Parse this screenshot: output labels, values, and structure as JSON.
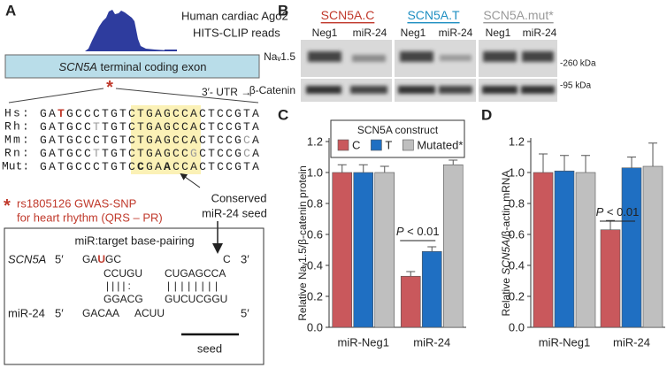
{
  "panel_a": {
    "label": "A",
    "reads": [
      "Human cardiac Ago2",
      "HITS-CLIP reads"
    ],
    "exon": {
      "italic": "SCN5A",
      "text": " terminal coding exon"
    },
    "snp_marker": "*",
    "utr": "3′- UTR →",
    "alignment": [
      {
        "species": "Hs:",
        "seq": [
          "GA",
          "T",
          "GCCCTGTCTGAGCCACTCCGTA"
        ]
      },
      {
        "species": "Rh:",
        "seq": [
          "GATGCC",
          "T",
          "TGTCTGAGCCACTCCGTA"
        ]
      },
      {
        "species": "Mm:",
        "seq": [
          "GATGCCCTGTCTGAGCCACTCCG",
          "C",
          "A"
        ]
      },
      {
        "species": "Rn:",
        "seq": [
          "GATGCC",
          "T",
          "TGTCTGAGCC",
          "G",
          "CTCCG",
          "C",
          "A"
        ]
      },
      {
        "species": "Mut:",
        "seq": [
          "GATGCCCTGTC",
          "C",
          "GA",
          "A",
          "CCACTCCGTA"
        ]
      }
    ],
    "snp_note": [
      "rs1805126 GWAS-SNP",
      "for heart rhythm (QRS – PR)"
    ],
    "seed_note": [
      "Conserved",
      "miR-24 seed"
    ],
    "pairing": {
      "title": "miR:target base-pairing",
      "target": {
        "name": "SCN5A",
        "end5": "5′",
        "seq": [
          "GA",
          "U",
          "GC"
        ],
        "tail": "C",
        "end3": "3′"
      },
      "paired_top": [
        "CCUGU",
        "CUGAGCCA"
      ],
      "bonds": [
        "||||:",
        "||||||||"
      ],
      "paired_bottom": [
        "GGACG",
        "GUCUCGGU"
      ],
      "mirna": {
        "name": "miR-24",
        "end5": "5′",
        "seq": [
          "GACAA",
          "ACUU"
        ],
        "end": "5′"
      },
      "seed": "seed"
    }
  },
  "panel_b": {
    "label": "B",
    "constructs": [
      "SCN5A.C",
      "SCN5A.T",
      "SCN5A.mut*"
    ],
    "lanes": [
      "Neg1",
      "miR-24",
      "Neg1",
      "miR-24",
      "Neg1",
      "miR-24"
    ],
    "rows": [
      "Naᵥ1.5",
      "β-Catenin"
    ],
    "sizes": [
      "-260 kDa",
      "-95 kDa"
    ]
  },
  "chart_data": [
    {
      "type": "bar",
      "panel": "C",
      "ylabel": "Relative Naᵥ1.5/β-catenin protein",
      "categories": [
        "miR-Neg1",
        "miR-24"
      ],
      "series": [
        {
          "name": "C",
          "color": "#c9585c",
          "values": [
            1.0,
            0.33
          ],
          "errors": [
            0.05,
            0.03
          ]
        },
        {
          "name": "T",
          "color": "#1f6fc2",
          "values": [
            1.0,
            0.49
          ],
          "errors": [
            0.05,
            0.03
          ]
        },
        {
          "name": "Mutated*",
          "color": "#bfbfbf",
          "values": [
            1.0,
            1.05
          ],
          "errors": [
            0.04,
            0.03
          ]
        }
      ],
      "legend_title": "SCN5A construct",
      "annotation": {
        "italic": "P",
        "text": " < 0.01"
      },
      "ylim": [
        0,
        1.2
      ],
      "yticks": [
        {
          "value": 0,
          "label": "0.0"
        },
        {
          "value": 0.2,
          "label": "0.2"
        },
        {
          "value": 0.4,
          "label": "0.4"
        },
        {
          "value": 0.6,
          "label": "0.6"
        },
        {
          "value": 0.8,
          "label": "0.8"
        },
        {
          "value": 1,
          "label": "1.0"
        },
        {
          "value": 1.2,
          "label": "1.2"
        }
      ]
    },
    {
      "type": "bar",
      "panel": "D",
      "ylabel": {
        "pre": "Relative ",
        "italic": "SCN5A",
        "post": "/β-actin mRNA"
      },
      "categories": [
        "miR-Neg1",
        "miR-24"
      ],
      "series": [
        {
          "name": "C",
          "color": "#c9585c",
          "values": [
            1.0,
            0.63
          ],
          "errors": [
            0.12,
            0.06
          ]
        },
        {
          "name": "T",
          "color": "#1f6fc2",
          "values": [
            1.01,
            1.03
          ],
          "errors": [
            0.1,
            0.07
          ]
        },
        {
          "name": "Mutated*",
          "color": "#bfbfbf",
          "values": [
            1.0,
            1.04
          ],
          "errors": [
            0.11,
            0.15
          ]
        }
      ],
      "annotation": {
        "italic": "P",
        "text": " < 0.01"
      },
      "ylim": [
        0,
        1.2
      ],
      "yticks": [
        {
          "value": 0,
          "label": "0.0"
        },
        {
          "value": 0.2,
          "label": "0.2"
        },
        {
          "value": 0.4,
          "label": "0.4"
        },
        {
          "value": 0.6,
          "label": "0.6"
        },
        {
          "value": 0.8,
          "label": "0.8"
        },
        {
          "value": 1,
          "label": "1.0"
        },
        {
          "value": 1.2,
          "label": "1.2"
        }
      ]
    }
  ]
}
